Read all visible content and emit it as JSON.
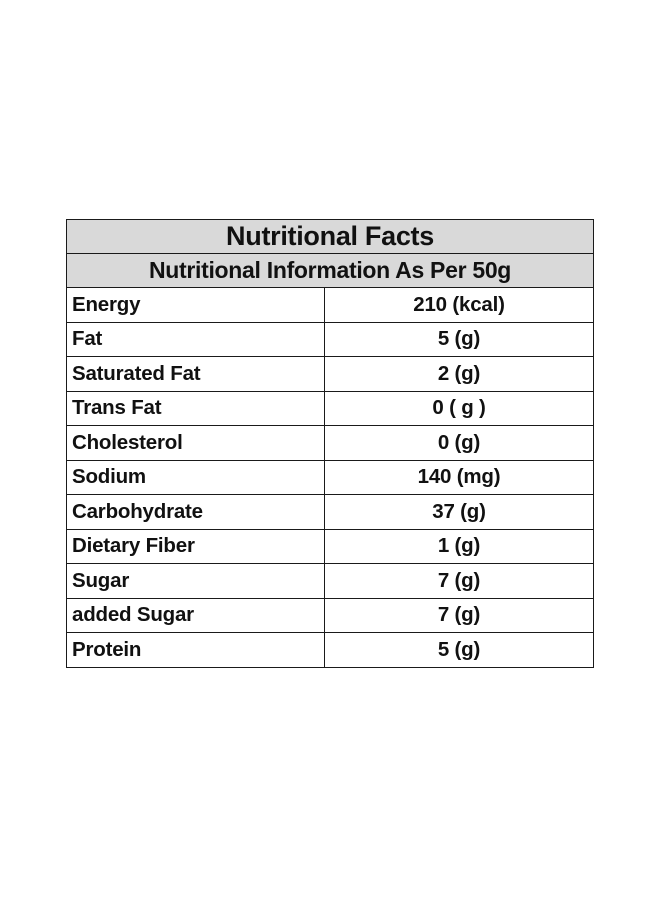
{
  "table": {
    "title": "Nutritional Facts",
    "subtitle": "Nutritional Information As Per 50g",
    "rows": [
      {
        "name": "Energy",
        "value": "210 (kcal)"
      },
      {
        "name": "Fat",
        "value": "5 (g)"
      },
      {
        "name": "Saturated Fat",
        "value": "2 (g)"
      },
      {
        "name": "Trans Fat",
        "value": "0 ( g )"
      },
      {
        "name": "Cholesterol",
        "value": "0 (g)"
      },
      {
        "name": "Sodium",
        "value": "140 (mg)"
      },
      {
        "name": "Carbohydrate",
        "value": "37 (g)"
      },
      {
        "name": "Dietary Fiber",
        "value": "1 (g)"
      },
      {
        "name": "Sugar",
        "value": "7 (g)"
      },
      {
        "name": "added Sugar",
        "value": "7 (g)"
      },
      {
        "name": "Protein",
        "value": "5 (g)"
      }
    ]
  },
  "colors": {
    "header_background": "#d9d9d9",
    "border": "#1a1a1a",
    "text": "#111111"
  }
}
